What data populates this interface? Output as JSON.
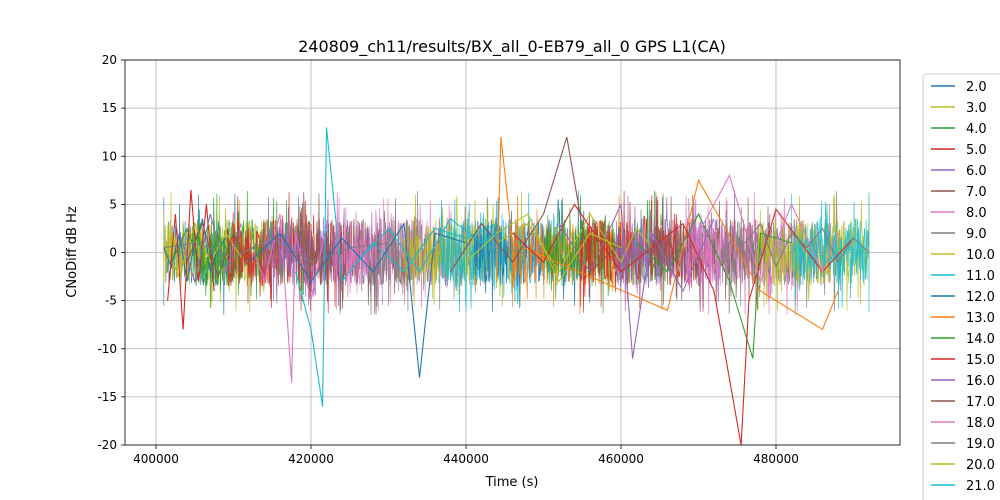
{
  "chart_data": {
    "type": "line",
    "title": "240809_ch11/results/BX_all_0-EB79_all_0 GPS L1(CA)",
    "xlabel": "Time (s)",
    "ylabel": "CNoDiff dB Hz",
    "xlim": [
      396000,
      496000
    ],
    "ylim": [
      -20,
      20
    ],
    "xticks": [
      400000,
      420000,
      440000,
      460000,
      480000
    ],
    "yticks": [
      -20,
      -15,
      -10,
      -5,
      0,
      5,
      10,
      15,
      20
    ],
    "grid": true,
    "legend_position": "right-outside",
    "series_colors": [
      "#1f77b4",
      "#bcbd22",
      "#2ca02c",
      "#d62728",
      "#9467bd",
      "#8c564b",
      "#e377c2",
      "#7f7f7f",
      "#bcbd22",
      "#17becf",
      "#1f77b4",
      "#ff7f0e",
      "#2ca02c",
      "#d62728",
      "#9467bd",
      "#8c564b",
      "#e377c2",
      "#7f7f7f",
      "#bcbd22",
      "#17becf"
    ],
    "series": [
      {
        "name": "2.0",
        "color": "#1f77b4",
        "x": [
          401000,
          402000,
          403000,
          404000,
          405000,
          406000,
          407000,
          408000,
          409000
        ],
        "y": [
          0.5,
          -1.5,
          2.0,
          -3.0,
          1.0,
          3.5,
          -2.0,
          0.5,
          1.5
        ]
      },
      {
        "name": "3.0",
        "color": "#bcbd22",
        "x": [
          401000,
          403000,
          405000,
          407000,
          409000,
          411000
        ],
        "y": [
          1.0,
          -2.5,
          3.0,
          -1.0,
          2.0,
          -0.5
        ]
      },
      {
        "name": "4.0",
        "color": "#2ca02c",
        "x": [
          402000,
          404000,
          406000,
          408000,
          410000
        ],
        "y": [
          -1.0,
          2.5,
          -2.0,
          1.5,
          -0.5
        ]
      },
      {
        "name": "5.0",
        "color": "#d62728",
        "x": [
          401500,
          402500,
          403500,
          404500,
          405500,
          406500,
          407500
        ],
        "y": [
          -5.0,
          4.0,
          -8.0,
          6.5,
          -3.0,
          5.0,
          -4.0
        ]
      },
      {
        "name": "6.0",
        "color": "#9467bd",
        "x": [
          403000,
          405000,
          407000,
          409000,
          411000
        ],
        "y": [
          2.0,
          -3.0,
          4.0,
          -2.0,
          3.0
        ]
      },
      {
        "name": "7.0",
        "color": "#8c564b",
        "x": [
          404000,
          406000,
          408000,
          410000,
          412000
        ],
        "y": [
          -1.0,
          3.0,
          -2.5,
          2.0,
          -1.5
        ]
      },
      {
        "name": "8.0",
        "color": "#e377c2",
        "x": [
          412000,
          414000,
          416000,
          417500,
          418000,
          420000,
          422000
        ],
        "y": [
          1.5,
          -3.0,
          4.0,
          -13.5,
          2.0,
          -5.0,
          3.0
        ]
      },
      {
        "name": "9.0",
        "color": "#7f7f7f",
        "x": [
          401000,
          405000,
          410000,
          415000,
          420000,
          425000,
          430000
        ],
        "y": [
          0.5,
          1.0,
          -0.5,
          1.5,
          -1.0,
          0.5,
          1.0
        ]
      },
      {
        "name": "10.0",
        "color": "#bcbd22",
        "x": [
          444000,
          448000,
          452000,
          456000,
          460000,
          462000,
          464000
        ],
        "y": [
          1.0,
          3.0,
          -2.0,
          4.0,
          -1.0,
          2.5,
          0.5
        ]
      },
      {
        "name": "11.0",
        "color": "#17becf",
        "x": [
          418000,
          420000,
          421500,
          422000,
          424000,
          428000,
          432000,
          436000,
          440000,
          444000
        ],
        "y": [
          -2.0,
          -8.0,
          -16.0,
          13.0,
          -3.0,
          1.0,
          -2.0,
          2.5,
          1.5,
          3.0
        ]
      },
      {
        "name": "12.0",
        "color": "#1f77b4",
        "x": [
          412000,
          416000,
          420000,
          424000,
          428000,
          432000,
          434000,
          436000,
          440000
        ],
        "y": [
          -1.0,
          2.0,
          -3.0,
          1.5,
          -2.0,
          3.0,
          -13.0,
          2.0,
          1.0
        ]
      },
      {
        "name": "13.0",
        "color": "#ff7f0e",
        "x": [
          444000,
          444500,
          446000,
          466000,
          470000,
          478000,
          486000,
          488000
        ],
        "y": [
          -3.0,
          12.0,
          1.0,
          -6.0,
          7.5,
          -4.0,
          -8.0,
          -4.0
        ]
      },
      {
        "name": "14.0",
        "color": "#2ca02c",
        "x": [
          462000,
          466000,
          470000,
          474000,
          477000,
          478000,
          482000
        ],
        "y": [
          1.0,
          -2.0,
          4.0,
          -3.0,
          -11.0,
          2.0,
          1.0
        ]
      },
      {
        "name": "15.0",
        "color": "#d62728",
        "x": [
          446000,
          450000,
          454000,
          460000,
          468000,
          472000,
          475500,
          476500,
          480000,
          486000,
          490000
        ],
        "y": [
          2.0,
          -1.0,
          5.0,
          -2.0,
          3.0,
          -4.0,
          -20.0,
          -5.0,
          4.5,
          -2.0,
          1.5
        ]
      },
      {
        "name": "16.0",
        "color": "#9467bd",
        "x": [
          452000,
          456000,
          460000,
          461500,
          464000,
          468000,
          472000
        ],
        "y": [
          3.0,
          -2.0,
          5.0,
          -11.0,
          2.0,
          -4.0,
          3.5
        ]
      },
      {
        "name": "17.0",
        "color": "#8c564b",
        "x": [
          438000,
          442000,
          446000,
          450000,
          453000,
          456000,
          460000
        ],
        "y": [
          -2.0,
          3.0,
          -1.0,
          4.0,
          12.0,
          -2.0,
          1.0
        ]
      },
      {
        "name": "18.0",
        "color": "#e377c2",
        "x": [
          470000,
          474000,
          478000,
          482000,
          486000,
          488000
        ],
        "y": [
          2.0,
          8.0,
          -3.0,
          5.0,
          -2.0,
          2.0
        ]
      },
      {
        "name": "19.0",
        "color": "#7f7f7f",
        "x": [
          476000,
          478000,
          480000,
          482000,
          484000,
          486000,
          488000,
          490000,
          492000
        ],
        "y": [
          1.0,
          3.0,
          -1.5,
          2.0,
          0.5,
          2.5,
          -1.0,
          1.5,
          0.0
        ]
      },
      {
        "name": "20.0",
        "color": "#bcbd22",
        "x": [
          440000,
          444000,
          448000,
          452000,
          456000,
          460000
        ],
        "y": [
          -1.0,
          2.0,
          4.0,
          -3.0,
          2.0,
          0.5
        ]
      },
      {
        "name": "21.0",
        "color": "#17becf",
        "x": [
          426000,
          430000,
          434000,
          438000,
          442000,
          444000
        ],
        "y": [
          -1.0,
          2.5,
          -2.0,
          3.5,
          1.0,
          2.0
        ]
      }
    ],
    "noise_band": {
      "x_start": 401000,
      "x_end": 492000,
      "y_min": -5,
      "y_max": 5
    }
  }
}
